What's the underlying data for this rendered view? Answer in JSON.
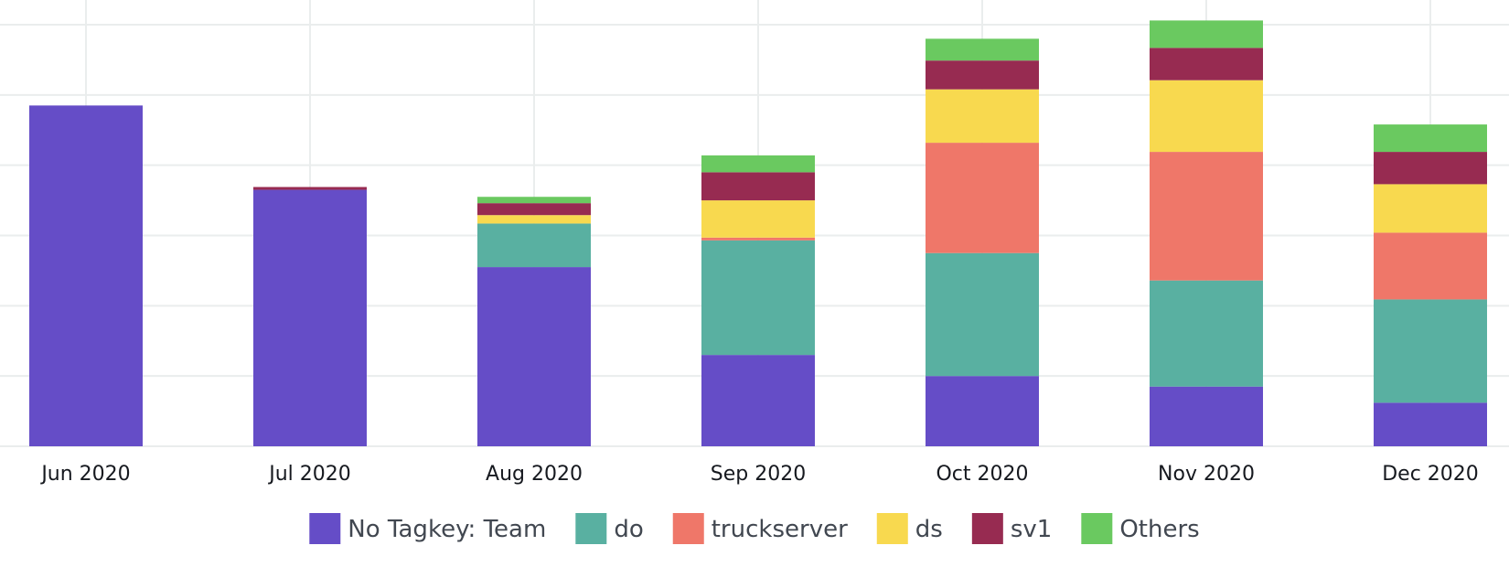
{
  "chart_data": {
    "type": "bar",
    "stacked": true,
    "categories": [
      "Jun 2020",
      "Jul 2020",
      "Aug 2020",
      "Sep 2020",
      "Oct 2020",
      "Nov 2020",
      "Dec 2020"
    ],
    "series": [
      {
        "name": "No Tagkey: Team",
        "color": "#654dc7",
        "values": [
          48.5,
          36.5,
          25.5,
          13.0,
          10.0,
          8.5,
          6.2
        ]
      },
      {
        "name": "do",
        "color": "#59b0a1",
        "values": [
          0,
          0,
          6.2,
          16.3,
          17.5,
          15.1,
          14.7
        ]
      },
      {
        "name": "truckserver",
        "color": "#ef7769",
        "values": [
          0,
          0,
          0,
          0.4,
          15.7,
          18.3,
          9.5
        ]
      },
      {
        "name": "ds",
        "color": "#f8d94f",
        "values": [
          0,
          0,
          1.2,
          5.3,
          7.6,
          10.2,
          6.9
        ]
      },
      {
        "name": "sv1",
        "color": "#972b51",
        "values": [
          0,
          0.4,
          1.7,
          4.0,
          4.1,
          4.6,
          4.6
        ]
      },
      {
        "name": "Others",
        "color": "#6ac960",
        "values": [
          0,
          0,
          0.9,
          2.4,
          3.1,
          3.9,
          3.9
        ]
      }
    ],
    "ylim": [
      0,
      60
    ],
    "grid": true,
    "legend_position": "bottom"
  }
}
